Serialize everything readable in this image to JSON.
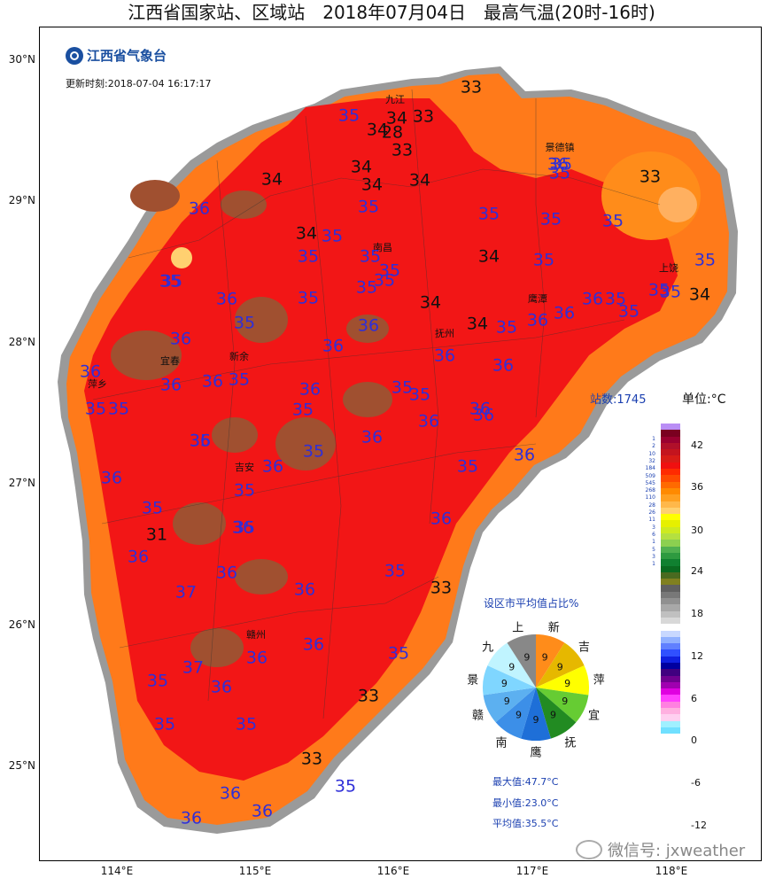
{
  "title": "江西省国家站、区域站　2018年07月04日　最高气温(20时-16时)",
  "logo_text": "江西省气象台",
  "update_label": "更新时刻:2018-07-04 16:17:17",
  "station_count": "站数:1745",
  "unit": "单位:°C",
  "lat_labels": [
    "30°N",
    "29°N",
    "28°N",
    "27°N",
    "26°N",
    "25°N"
  ],
  "lon_labels": [
    "114°E",
    "115°E",
    "116°E",
    "117°E",
    "118°E"
  ],
  "cities": [
    "九江",
    "景德镇",
    "南昌",
    "上饶",
    "鹰潭",
    "抚州",
    "宜春",
    "新余",
    "萍乡",
    "吉安",
    "赣州"
  ],
  "stations": [
    {
      "v": "33",
      "c": "black"
    },
    {
      "v": "35",
      "c": "blue"
    },
    {
      "v": "34",
      "c": "black"
    },
    {
      "v": "33",
      "c": "black"
    },
    {
      "v": "34",
      "c": "black"
    },
    {
      "v": "28",
      "c": "black"
    },
    {
      "v": "33",
      "c": "black"
    },
    {
      "v": "34",
      "c": "black"
    },
    {
      "v": "34",
      "c": "black"
    },
    {
      "v": "34",
      "c": "black"
    },
    {
      "v": "35",
      "c": "blue"
    },
    {
      "v": "33",
      "c": "black"
    },
    {
      "v": "34",
      "c": "black"
    },
    {
      "v": "36",
      "c": "blue"
    },
    {
      "v": "35",
      "c": "blue"
    },
    {
      "v": "35",
      "c": "blue"
    },
    {
      "v": "35",
      "c": "blue"
    },
    {
      "v": "35",
      "c": "blue"
    },
    {
      "v": "34",
      "c": "black"
    },
    {
      "v": "35",
      "c": "blue"
    },
    {
      "v": "35",
      "c": "blue"
    },
    {
      "v": "35",
      "c": "blue"
    },
    {
      "v": "35",
      "c": "blue"
    },
    {
      "v": "34",
      "c": "black"
    },
    {
      "v": "35",
      "c": "blue"
    },
    {
      "v": "35",
      "c": "blue"
    },
    {
      "v": "35",
      "c": "blue"
    },
    {
      "v": "35",
      "c": "blue"
    },
    {
      "v": "36",
      "c": "blue"
    },
    {
      "v": "35",
      "c": "blue"
    },
    {
      "v": "34",
      "c": "black"
    },
    {
      "v": "35",
      "c": "blue"
    },
    {
      "v": "36",
      "c": "blue"
    },
    {
      "v": "35",
      "c": "blue"
    },
    {
      "v": "34",
      "c": "black"
    },
    {
      "v": "35",
      "c": "blue"
    },
    {
      "v": "35",
      "c": "blue"
    },
    {
      "v": "36",
      "c": "blue"
    },
    {
      "v": "36",
      "c": "blue"
    },
    {
      "v": "36",
      "c": "blue"
    },
    {
      "v": "35",
      "c": "blue"
    },
    {
      "v": "36",
      "c": "blue"
    },
    {
      "v": "35",
      "c": "blue"
    },
    {
      "v": "36",
      "c": "blue"
    },
    {
      "v": "34",
      "c": "black"
    },
    {
      "v": "36",
      "c": "blue"
    },
    {
      "v": "36",
      "c": "blue"
    },
    {
      "v": "36",
      "c": "blue"
    },
    {
      "v": "36",
      "c": "blue"
    },
    {
      "v": "36",
      "c": "blue"
    },
    {
      "v": "35",
      "c": "blue"
    },
    {
      "v": "36",
      "c": "blue"
    },
    {
      "v": "35",
      "c": "blue"
    },
    {
      "v": "35",
      "c": "blue"
    },
    {
      "v": "35",
      "c": "blue"
    },
    {
      "v": "35",
      "c": "blue"
    },
    {
      "v": "36",
      "c": "blue"
    },
    {
      "v": "36",
      "c": "blue"
    },
    {
      "v": "36",
      "c": "blue"
    },
    {
      "v": "36",
      "c": "blue"
    },
    {
      "v": "35",
      "c": "blue"
    },
    {
      "v": "36",
      "c": "blue"
    },
    {
      "v": "35",
      "c": "blue"
    },
    {
      "v": "36",
      "c": "blue"
    },
    {
      "v": "36",
      "c": "blue"
    },
    {
      "v": "35",
      "c": "blue"
    },
    {
      "v": "35",
      "c": "blue"
    },
    {
      "v": "31",
      "c": "black"
    },
    {
      "v": "36",
      "c": "blue"
    },
    {
      "v": "35",
      "c": "blue"
    },
    {
      "v": "36",
      "c": "blue"
    },
    {
      "v": "37",
      "c": "blue"
    },
    {
      "v": "36",
      "c": "blue"
    },
    {
      "v": "33",
      "c": "black"
    },
    {
      "v": "36",
      "c": "blue"
    },
    {
      "v": "35",
      "c": "blue"
    },
    {
      "v": "37",
      "c": "blue"
    },
    {
      "v": "35",
      "c": "blue"
    },
    {
      "v": "36",
      "c": "blue"
    },
    {
      "v": "36",
      "c": "blue"
    },
    {
      "v": "36",
      "c": "blue"
    },
    {
      "v": "35",
      "c": "blue"
    },
    {
      "v": "33",
      "c": "black"
    },
    {
      "v": "33",
      "c": "black"
    },
    {
      "v": "35",
      "c": "blue"
    },
    {
      "v": "35",
      "c": "blue"
    },
    {
      "v": "35",
      "c": "blue"
    },
    {
      "v": "36",
      "c": "blue"
    },
    {
      "v": "36",
      "c": "blue"
    },
    {
      "v": "36",
      "c": "blue"
    },
    {
      "v": "35",
      "c": "blue"
    },
    {
      "v": "35",
      "c": "blue"
    },
    {
      "v": "36",
      "c": "blue"
    },
    {
      "v": "35",
      "c": "blue"
    },
    {
      "v": "36",
      "c": "blue"
    },
    {
      "v": "36",
      "c": "blue"
    },
    {
      "v": "35",
      "c": "blue"
    },
    {
      "v": "35",
      "c": "blue"
    }
  ],
  "colorbar": {
    "colors": [
      "#b98ef5",
      "#7a0020",
      "#9a0030",
      "#b0102a",
      "#c4141e",
      "#d81c16",
      "#f01010",
      "#ff2a00",
      "#ff4a00",
      "#ff6a00",
      "#ff8a00",
      "#ffa020",
      "#ffb84a",
      "#ffd070",
      "#ffff00",
      "#e6f000",
      "#cdea20",
      "#b4e040",
      "#8cd050",
      "#50b050",
      "#2e9a40",
      "#108030",
      "#0a6a20",
      "#4a6a20",
      "#808020",
      "#606060",
      "#787878",
      "#909090",
      "#a8a8a8",
      "#c0c0c0",
      "#d8d8d8",
      "#ffffff",
      "#c8d8ff",
      "#90b0ff",
      "#6080ff",
      "#3050ff",
      "#1020e0",
      "#0000a0",
      "#400080",
      "#700090",
      "#a000b0",
      "#e000e0",
      "#ff40ff",
      "#ff80e0",
      "#ffb0e0",
      "#ffd0f0",
      "#a0f0ff",
      "#70e0ff"
    ],
    "counts": [
      "1",
      "2",
      "10",
      "32",
      "184",
      "509",
      "545",
      "268",
      "110",
      "28",
      "26",
      "11",
      "3",
      "6",
      "1",
      "5",
      "3",
      "1"
    ],
    "ticks": [
      "42",
      "36",
      "30",
      "24",
      "18",
      "12",
      "6",
      "0",
      "-6",
      "-12"
    ]
  },
  "pie": {
    "title": "设区市平均值占比%",
    "slices": [
      {
        "label": "新",
        "value": 9,
        "color": "#ff8c1a"
      },
      {
        "label": "吉",
        "value": 9,
        "color": "#e6b800"
      },
      {
        "label": "萍",
        "value": 9,
        "color": "#ffff00"
      },
      {
        "label": "宜",
        "value": 9,
        "color": "#66cc33"
      },
      {
        "label": "抚",
        "value": 9,
        "color": "#228b22"
      },
      {
        "label": "鹰",
        "value": 9,
        "color": "#1e6fd8"
      },
      {
        "label": "南",
        "value": 9,
        "color": "#3c8fe8"
      },
      {
        "label": "赣",
        "value": 9,
        "color": "#5cb0f0"
      },
      {
        "label": "景",
        "value": 9,
        "color": "#7fd6ff"
      },
      {
        "label": "九",
        "value": 9,
        "color": "#c0f4ff"
      },
      {
        "label": "上",
        "value": 9,
        "color": "#888888"
      }
    ]
  },
  "stats": {
    "max": "最大值:47.7°C",
    "min": "最小值:23.0°C",
    "avg": "平均值:35.5°C"
  },
  "watermark": "微信号: jxweather"
}
